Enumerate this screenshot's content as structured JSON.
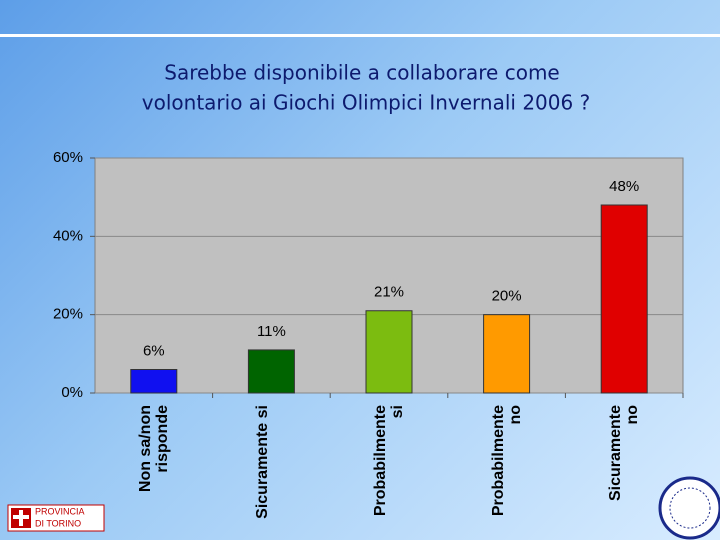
{
  "chart_data": {
    "type": "bar",
    "title": [
      "Sarebbe disponibile a collaborare come",
      "volontario ai Giochi Olimpici Invernali 2006 ?"
    ],
    "categories": [
      "Non sa/non risponde",
      "Sicuramente si",
      "Probabilmente si",
      "Probabilmente no",
      "Sicuramente no"
    ],
    "values": [
      6,
      11,
      21,
      20,
      48
    ],
    "value_labels": [
      "6%",
      "11%",
      "21%",
      "20%",
      "48%"
    ],
    "colors": [
      "#1010f0",
      "#006400",
      "#7cbc10",
      "#ff9a00",
      "#e00000"
    ],
    "ylim": [
      0,
      60
    ],
    "yticks": [
      {
        "value": 0,
        "label": "0%"
      },
      {
        "value": 20,
        "label": "20%"
      },
      {
        "value": 40,
        "label": "40%"
      },
      {
        "value": 60,
        "label": "60%"
      }
    ],
    "grid": true
  },
  "footer": {
    "logo_line_1": "PROVINCIA",
    "logo_line_2": "DI TORINO"
  }
}
